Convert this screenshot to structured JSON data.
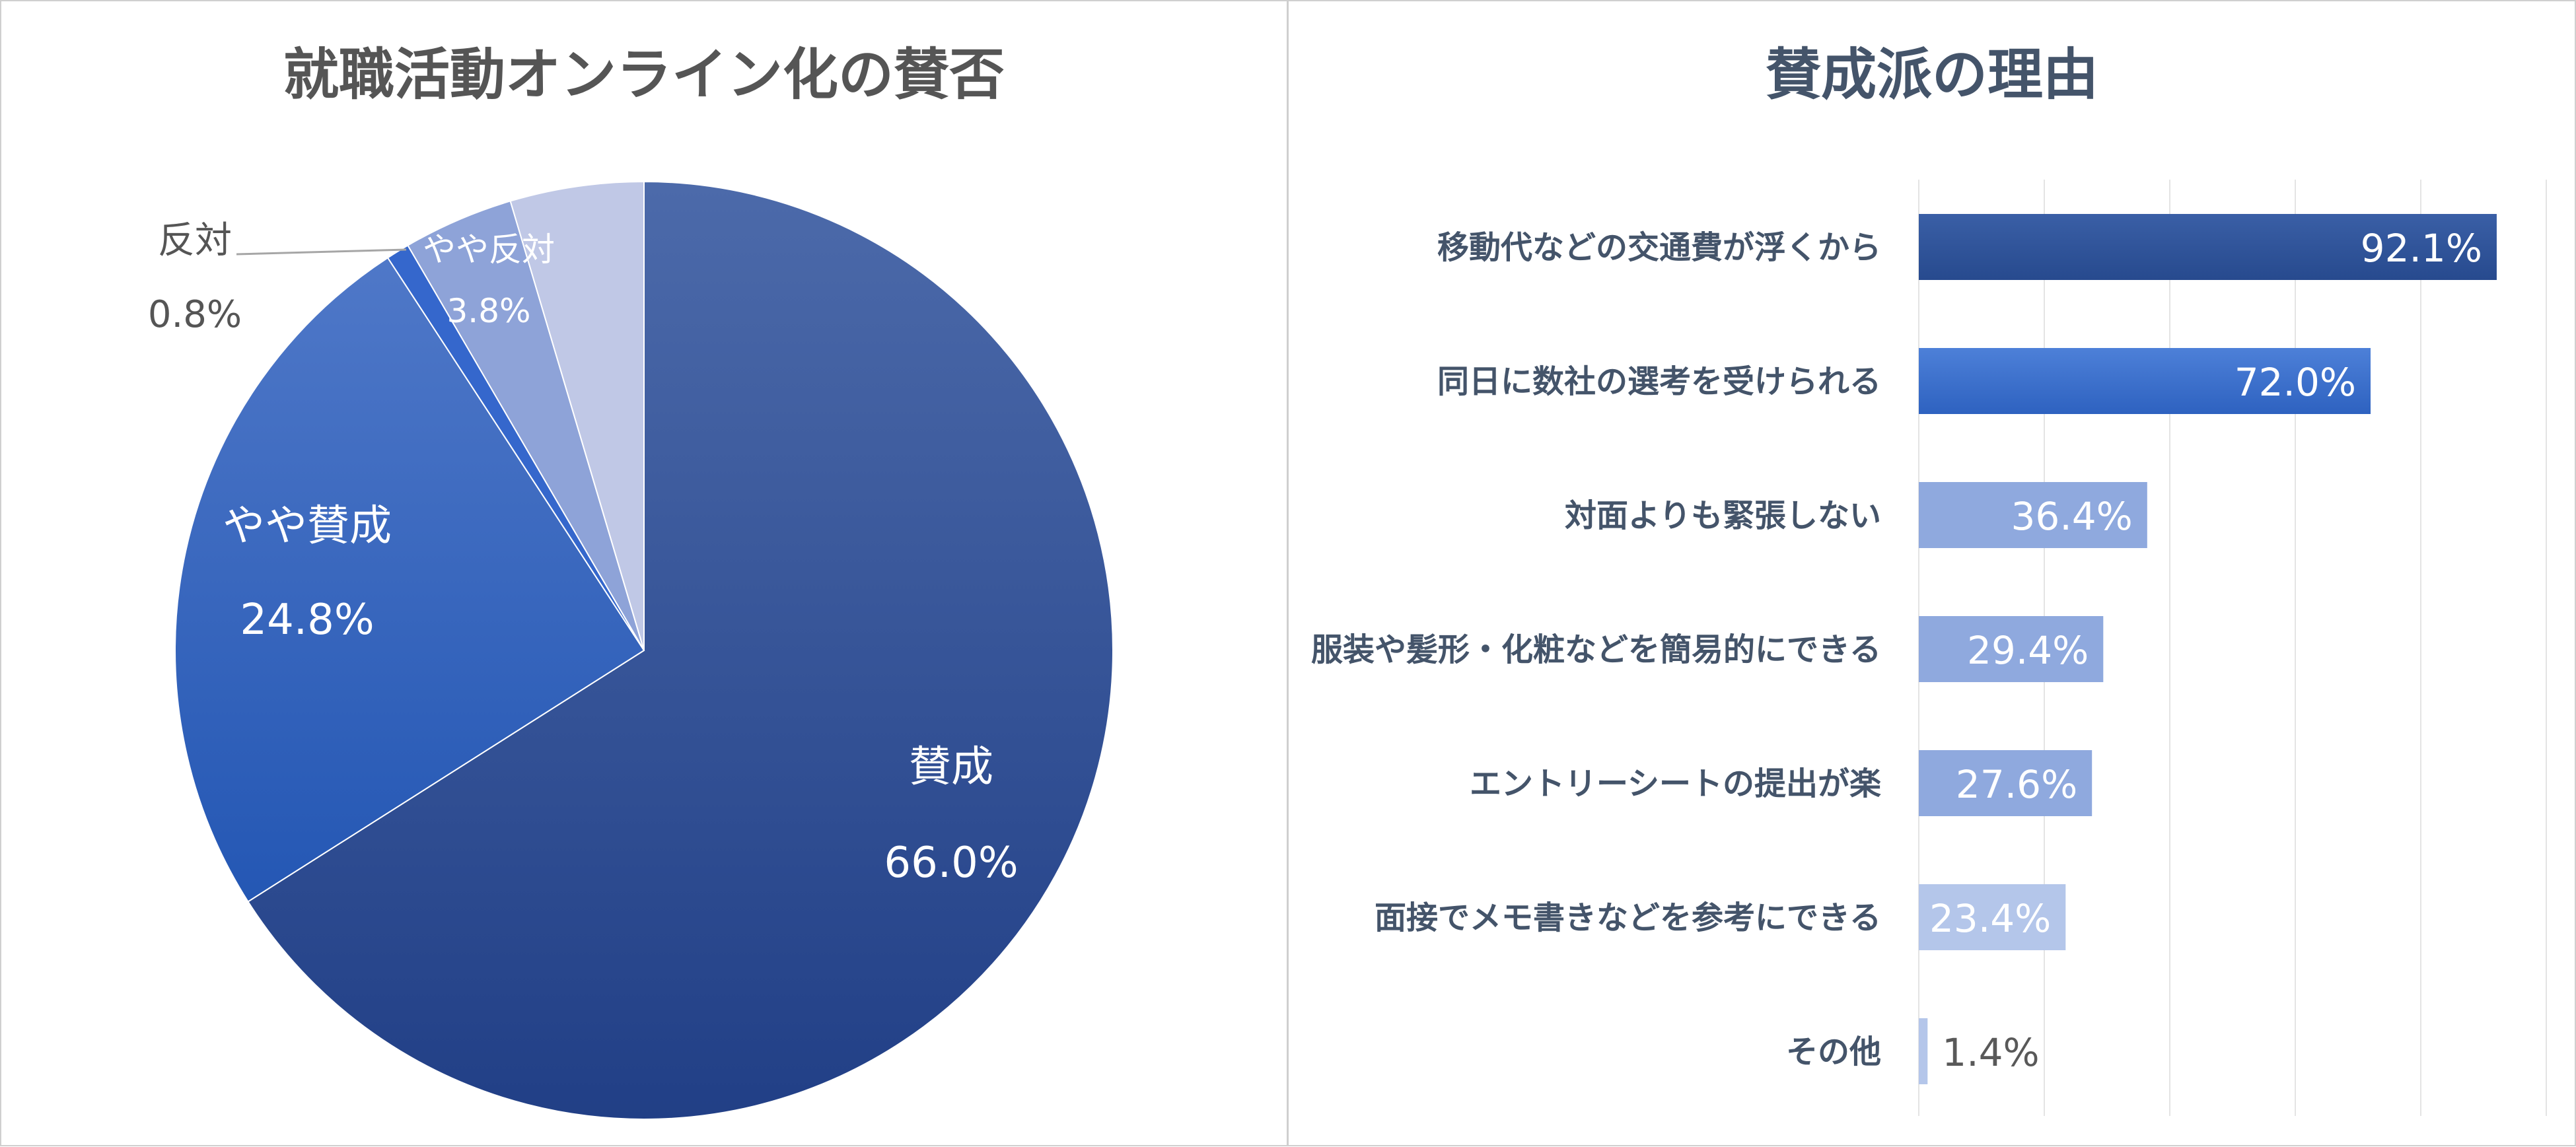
{
  "chart_data": [
    {
      "type": "pie",
      "title": "就職活動オンライン化の賛否",
      "slices": [
        {
          "label": "賛成",
          "value": 66.0,
          "value_label": "66.0%",
          "color": "#2B4E96"
        },
        {
          "label": "やや賛成",
          "value": 24.8,
          "value_label": "24.8%",
          "color": "#3262B8"
        },
        {
          "label": "反対",
          "value": 0.8,
          "value_label": "0.8%",
          "color": "#3567CC"
        },
        {
          "label": "やや反対",
          "value": 3.8,
          "value_label": "3.8%",
          "color": "#8EA3D8"
        },
        {
          "label": "",
          "value": 4.6,
          "value_label": "",
          "color": "#C0C8E6"
        }
      ]
    },
    {
      "type": "bar",
      "orientation": "horizontal",
      "title": "賛成派の理由",
      "categories": [
        "移動代などの交通費が浮くから",
        "同日に数社の選考を受けられる",
        "対面よりも緊張しない",
        "服装や髪形・化粧などを簡易的にできる",
        "エントリーシートの提出が楽",
        "面接でメモ書きなどを参考にできる",
        "その他"
      ],
      "values": [
        92.1,
        72.0,
        36.4,
        29.4,
        27.6,
        23.4,
        1.4
      ],
      "value_labels": [
        "92.1%",
        "72.0%",
        "36.4%",
        "29.4%",
        "27.6%",
        "23.4%",
        "1.4%"
      ],
      "colors": [
        "#2F5396",
        "#3A6BC8",
        "#8FA9DE",
        "#8FA9DE",
        "#8FA9DE",
        "#B4C6EA",
        "#B4C6EA"
      ],
      "xlim": [
        0,
        100
      ],
      "grid": true
    }
  ]
}
